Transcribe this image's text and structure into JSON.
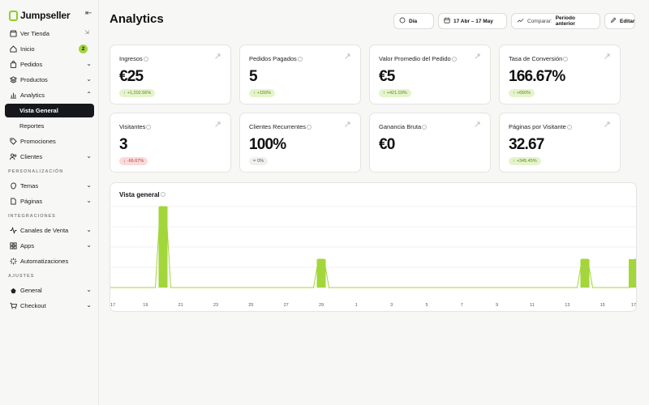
{
  "brand": {
    "name": "Jumpseller"
  },
  "sidebar": {
    "items": [
      {
        "name": "ver-tienda",
        "label": "Ver Tienda",
        "icon": "store-icon"
      },
      {
        "name": "inicio",
        "label": "Inicio",
        "icon": "home-icon",
        "badge": "2"
      },
      {
        "name": "pedidos",
        "label": "Pedidos",
        "icon": "bag-icon"
      },
      {
        "name": "productos",
        "label": "Productos",
        "icon": "layers-icon"
      },
      {
        "name": "analytics",
        "label": "Analytics",
        "icon": "bar-chart-icon"
      },
      {
        "name": "vista-general",
        "label": "Vista General"
      },
      {
        "name": "reportes",
        "label": "Reportes"
      },
      {
        "name": "promociones",
        "label": "Promociones",
        "icon": "tag-icon"
      },
      {
        "name": "clientes",
        "label": "Clientes",
        "icon": "users-icon"
      },
      {
        "name": "temas",
        "label": "Temas",
        "icon": "brush-icon"
      },
      {
        "name": "paginas",
        "label": "Páginas",
        "icon": "page-icon"
      },
      {
        "name": "canales-de-venta",
        "label": "Canales de Venta",
        "icon": "pulse-icon"
      },
      {
        "name": "apps",
        "label": "Apps",
        "icon": "grid-icon"
      },
      {
        "name": "automatizaciones",
        "label": "Automatizaciones",
        "icon": "spark-icon"
      },
      {
        "name": "general",
        "label": "General",
        "icon": "gear-icon"
      },
      {
        "name": "checkout",
        "label": "Checkout",
        "icon": "cart-icon"
      }
    ],
    "sections": {
      "personalizacion": "PERSONALIZACIÓN",
      "integraciones": "INTEGRACIONES",
      "ajustes": "AJUSTES"
    }
  },
  "header": {
    "title": "Analytics",
    "period_button": "Día",
    "date_range": "17 Abr – 17 May",
    "compare_prefix": "Comparar:",
    "compare_value": "Periodo anterior",
    "edit_button": "Editar"
  },
  "metrics": [
    {
      "label": "Ingresos",
      "value": "€25",
      "delta": "+1,202.56%",
      "trend": "up"
    },
    {
      "label": "Pedidos Pagados",
      "value": "5",
      "delta": "+150%",
      "trend": "up"
    },
    {
      "label": "Valor Promedio del Pedido",
      "value": "€5",
      "delta": "+421.03%",
      "trend": "up"
    },
    {
      "label": "Tasa de Conversión",
      "value": "166.67%",
      "delta": "+650%",
      "trend": "up"
    },
    {
      "label": "Visitantes",
      "value": "3",
      "delta": "-66.67%",
      "trend": "down"
    },
    {
      "label": "Clientes Recurrentes",
      "value": "100%",
      "delta": "0%",
      "trend": "flat"
    },
    {
      "label": "Ganancia Bruta",
      "value": "€0",
      "delta": "",
      "trend": "none"
    },
    {
      "label": "Páginas por Visitante",
      "value": "32.67",
      "delta": "+345.45%",
      "trend": "up"
    }
  ],
  "chart_data": {
    "type": "bar",
    "title": "Vista general",
    "categories": [
      "17",
      "18",
      "19",
      "20",
      "21",
      "22",
      "23",
      "24",
      "25",
      "26",
      "27",
      "28",
      "29",
      "30",
      "1",
      "2",
      "3",
      "4",
      "5",
      "6",
      "7",
      "8",
      "9",
      "10",
      "11",
      "12",
      "13",
      "14",
      "15",
      "16",
      "17"
    ],
    "tick_labels": [
      "17",
      "19",
      "21",
      "23",
      "25",
      "27",
      "29",
      "1",
      "3",
      "5",
      "7",
      "9",
      "11",
      "13",
      "15",
      "17"
    ],
    "values": [
      0,
      0,
      0,
      5,
      0,
      0,
      0,
      0,
      0,
      0,
      0,
      0,
      1.75,
      0,
      0,
      0,
      0,
      0,
      0,
      0,
      0,
      0,
      0,
      0,
      0,
      0,
      0,
      1.75,
      0,
      0,
      1.75
    ],
    "overlay_line": true,
    "grid": true,
    "ylim": [
      0,
      5
    ],
    "color": "#a3d63a"
  }
}
